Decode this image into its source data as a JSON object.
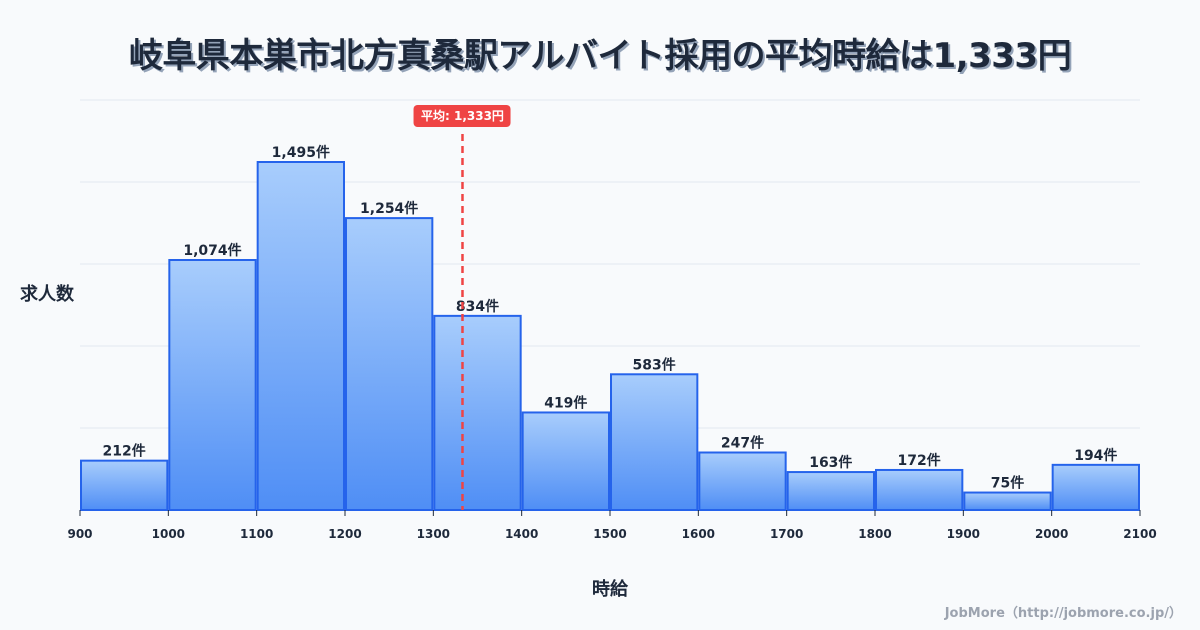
{
  "title": "岐阜県本巣市北方真桑駅アルバイト採用の平均時給は1,333円",
  "y_axis_label": "求人数",
  "x_axis_label": "時給",
  "credit": "JobMore（http://jobmore.co.jp/）",
  "average": {
    "value": 1333,
    "label": "平均: 1,333円",
    "color": "#ef4444"
  },
  "colors": {
    "bar_top": "#a8cdfc",
    "bar_bottom": "#4f8ef5",
    "bar_stroke": "#2563eb",
    "grid": "#e2e8f0",
    "background": "#f8fafc"
  },
  "chart_data": {
    "type": "bar",
    "title": "岐阜県本巣市北方真桑駅アルバイト採用の平均時給は1,333円",
    "xlabel": "時給",
    "ylabel": "求人数",
    "x_ticks": [
      900,
      1000,
      1100,
      1200,
      1300,
      1400,
      1500,
      1600,
      1700,
      1800,
      1900,
      2000,
      2100
    ],
    "bins": [
      {
        "from": 900,
        "to": 1000,
        "value": 212,
        "label": "212件"
      },
      {
        "from": 1000,
        "to": 1100,
        "value": 1074,
        "label": "1,074件"
      },
      {
        "from": 1100,
        "to": 1200,
        "value": 1495,
        "label": "1,495件"
      },
      {
        "from": 1200,
        "to": 1300,
        "value": 1254,
        "label": "1,254件"
      },
      {
        "from": 1300,
        "to": 1400,
        "value": 834,
        "label": "834件"
      },
      {
        "from": 1400,
        "to": 1500,
        "value": 419,
        "label": "419件"
      },
      {
        "from": 1500,
        "to": 1600,
        "value": 583,
        "label": "583件"
      },
      {
        "from": 1600,
        "to": 1700,
        "value": 247,
        "label": "247件"
      },
      {
        "from": 1700,
        "to": 1800,
        "value": 163,
        "label": "163件"
      },
      {
        "from": 1800,
        "to": 1900,
        "value": 172,
        "label": "172件"
      },
      {
        "from": 1900,
        "to": 2000,
        "value": 75,
        "label": "75件"
      },
      {
        "from": 2000,
        "to": 2100,
        "value": 194,
        "label": "194件"
      }
    ],
    "categories": [
      "900-1000",
      "1000-1100",
      "1100-1200",
      "1200-1300",
      "1300-1400",
      "1400-1500",
      "1500-1600",
      "1600-1700",
      "1700-1800",
      "1800-1900",
      "1900-2000",
      "2000-2100"
    ],
    "values": [
      212,
      1074,
      1495,
      1254,
      834,
      419,
      583,
      247,
      163,
      172,
      75,
      194
    ],
    "xlim": [
      900,
      2100
    ],
    "ylim": [
      0,
      1760
    ],
    "grid": true,
    "legend": "none",
    "annotations": [
      {
        "type": "vline",
        "x": 1333,
        "label": "平均: 1,333円",
        "style": "dashed red"
      }
    ]
  }
}
